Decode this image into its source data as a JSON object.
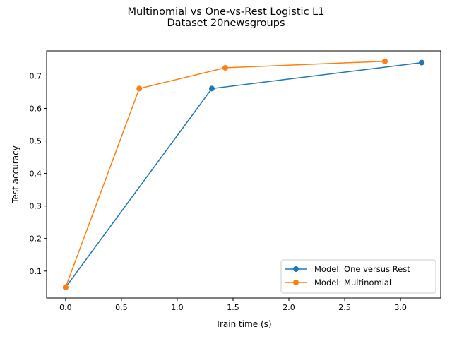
{
  "chart_data": {
    "type": "line",
    "title": "Multinomial vs One-vs-Rest Logistic L1",
    "subtitle": "Dataset 20newsgroups",
    "xlabel": "Train time (s)",
    "ylabel": "Test accuracy",
    "xlim": [
      -0.17,
      3.36
    ],
    "ylim": [
      0.017,
      0.777
    ],
    "xticks": [
      "0.0",
      "0.5",
      "1.0",
      "1.5",
      "2.0",
      "2.5",
      "3.0"
    ],
    "xtick_values": [
      0,
      0.5,
      1.0,
      1.5,
      2.0,
      2.5,
      3.0
    ],
    "yticks": [
      "0.1",
      "0.2",
      "0.3",
      "0.4",
      "0.5",
      "0.6",
      "0.7"
    ],
    "ytick_values": [
      0.1,
      0.2,
      0.3,
      0.4,
      0.5,
      0.6,
      0.7
    ],
    "grid": false,
    "legend_position": "bottom-right",
    "series": [
      {
        "name": "Model: One versus Rest",
        "color": "#1f77b4",
        "marker": "circle",
        "x": [
          0.0,
          1.31,
          3.19
        ],
        "y": [
          0.05,
          0.661,
          0.741
        ]
      },
      {
        "name": "Model: Multinomial",
        "color": "#ff7f0e",
        "marker": "circle",
        "x": [
          0.0,
          0.66,
          1.43,
          2.86
        ],
        "y": [
          0.05,
          0.661,
          0.725,
          0.745
        ]
      }
    ]
  }
}
